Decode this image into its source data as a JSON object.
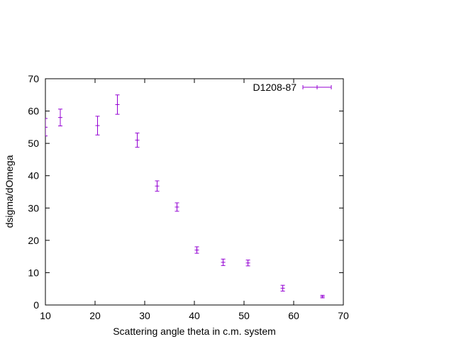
{
  "chart_data": {
    "type": "scatter",
    "title": "",
    "xlabel": "Scattering angle theta in c.m. system",
    "ylabel": "dsigma/dOmega",
    "xlim": [
      10,
      70
    ],
    "ylim": [
      0,
      70
    ],
    "xticks": [
      10,
      20,
      30,
      40,
      50,
      60,
      70
    ],
    "yticks": [
      0,
      10,
      20,
      30,
      40,
      50,
      60,
      70
    ],
    "grid": false,
    "legend_position": "top-right",
    "series": [
      {
        "name": "D1208-87",
        "color": "#9400d3",
        "marker": "plus",
        "error_bars": "y",
        "points": [
          {
            "x": 10.0,
            "y": 55.0,
            "err": 2.7
          },
          {
            "x": 13.0,
            "y": 58.0,
            "err": 2.6
          },
          {
            "x": 20.5,
            "y": 55.5,
            "err": 2.9
          },
          {
            "x": 24.5,
            "y": 62.0,
            "err": 3.0
          },
          {
            "x": 28.5,
            "y": 51.0,
            "err": 2.2
          },
          {
            "x": 32.5,
            "y": 36.8,
            "err": 1.6
          },
          {
            "x": 36.5,
            "y": 30.3,
            "err": 1.3
          },
          {
            "x": 40.5,
            "y": 17.0,
            "err": 1.0
          },
          {
            "x": 45.8,
            "y": 13.2,
            "err": 1.0
          },
          {
            "x": 50.8,
            "y": 13.0,
            "err": 0.9
          },
          {
            "x": 57.8,
            "y": 5.2,
            "err": 0.9
          },
          {
            "x": 65.8,
            "y": 2.6,
            "err": 0.4
          }
        ]
      }
    ]
  }
}
